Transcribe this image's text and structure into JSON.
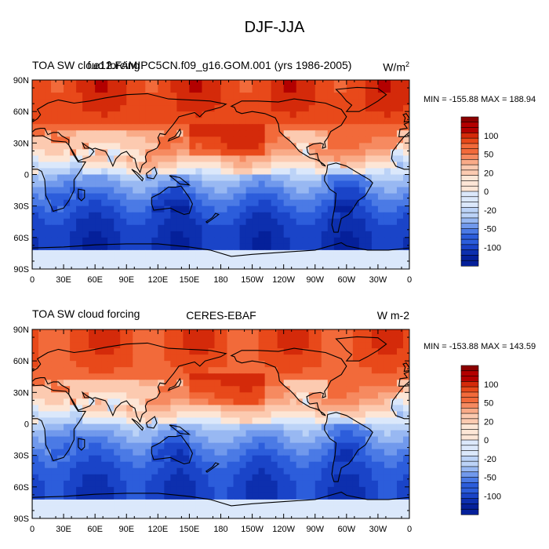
{
  "title": "DJF-JJA",
  "chart_data": [
    {
      "type": "heatmap",
      "variable_label": "TOA SW cloud forcing",
      "case_label": "f.e12.FAMIPC5CN.f09_g16.GOM.001 (yrs 1986-2005)",
      "units": "W/m",
      "units_superscript": "2",
      "min_label": "MIN = -155.88",
      "max_label": "MAX = 188.94",
      "xlim": [
        0,
        360
      ],
      "ylim": [
        -90,
        90
      ],
      "x_ticks": [
        "0",
        "30E",
        "60E",
        "90E",
        "120E",
        "150E",
        "180",
        "150W",
        "120W",
        "90W",
        "60W",
        "30W",
        "0"
      ],
      "y_ticks": [
        "90N",
        "60N",
        "30N",
        "0",
        "30S",
        "60S",
        "90S"
      ],
      "colorbar_levels": [
        -120,
        -110,
        -100,
        -90,
        -80,
        -70,
        -60,
        -50,
        -40,
        -30,
        -20,
        -15,
        -10,
        -5,
        0,
        5,
        10,
        15,
        20,
        30,
        40,
        50,
        60,
        70,
        80,
        90,
        100,
        110,
        120
      ],
      "colorbar_labels": [
        "100",
        "50",
        "20",
        "0",
        "-20",
        "-50",
        "-100"
      ]
    },
    {
      "type": "heatmap",
      "variable_label": "TOA SW cloud forcing",
      "case_label": "CERES-EBAF",
      "units": "W m-2",
      "units_superscript": "",
      "min_label": "MIN = -153.88",
      "max_label": "MAX = 143.59",
      "xlim": [
        0,
        360
      ],
      "ylim": [
        -90,
        90
      ],
      "x_ticks": [
        "0",
        "30E",
        "60E",
        "90E",
        "120E",
        "150E",
        "180",
        "150W",
        "120W",
        "90W",
        "60W",
        "30W",
        "0"
      ],
      "y_ticks": [
        "90N",
        "60N",
        "30N",
        "0",
        "30S",
        "60S",
        "90S"
      ],
      "colorbar_levels": [
        -120,
        -110,
        -100,
        -90,
        -80,
        -70,
        -60,
        -50,
        -40,
        -30,
        -20,
        -15,
        -10,
        -5,
        0,
        5,
        10,
        15,
        20,
        30,
        40,
        50,
        60,
        70,
        80,
        90,
        100,
        110,
        120
      ],
      "colorbar_labels": [
        "100",
        "50",
        "20",
        "0",
        "-20",
        "-50",
        "-100"
      ]
    }
  ],
  "colors": {
    "red_ramp": [
      "#8b0000",
      "#b30000",
      "#d42a0a",
      "#e8491a",
      "#f26a3a",
      "#f68a60",
      "#f9ab88",
      "#fccab0",
      "#fde6d6"
    ],
    "blue_ramp": [
      "#dbe8fb",
      "#bcd3f7",
      "#98b8f2",
      "#7199ec",
      "#4b7ae5",
      "#2c5ddb",
      "#1a44c8",
      "#0d2fae",
      "#05209a",
      "#000e7a"
    ],
    "land_outline": "#000000"
  }
}
